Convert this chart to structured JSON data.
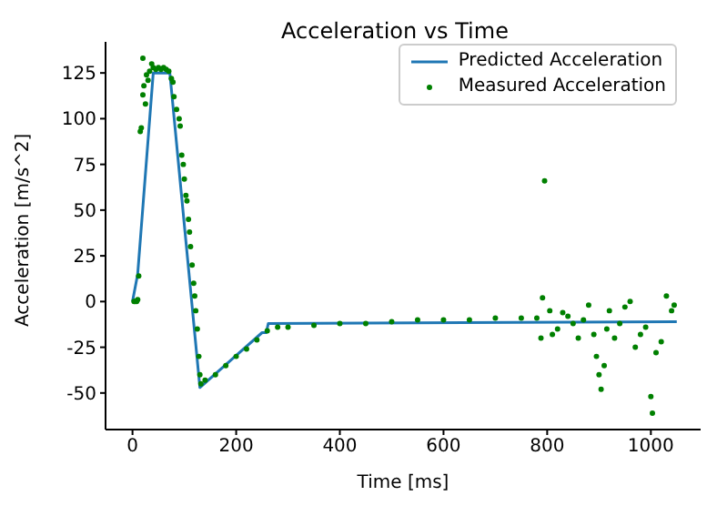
{
  "chart_data": {
    "type": "line",
    "title": "Acceleration vs Time",
    "xlabel": "Time [ms]",
    "ylabel": "Acceleration [m/s^2]",
    "xlim": [
      -52,
      1096
    ],
    "ylim": [
      -70,
      142
    ],
    "xticks": [
      0,
      200,
      400,
      600,
      800,
      1000
    ],
    "yticks": [
      -50,
      -25,
      0,
      25,
      50,
      75,
      100,
      125
    ],
    "grid": false,
    "legend": "top right",
    "series": [
      {
        "name": "Predicted Acceleration",
        "type": "line",
        "color": "#1f77b4",
        "marker": "none",
        "x": [
          0,
          10,
          40,
          72,
          130,
          250,
          258,
          262,
          1050
        ],
        "values": [
          0,
          15,
          125,
          125,
          -47,
          -17,
          -17,
          -12,
          -11
        ]
      },
      {
        "name": "Measured Acceleration",
        "type": "scatter",
        "color": "#008000",
        "marker": "circle",
        "x": [
          3,
          5,
          8,
          10,
          12,
          15,
          17,
          20,
          22,
          25,
          27,
          30,
          20,
          33,
          37,
          40,
          45,
          50,
          55,
          60,
          65,
          70,
          75,
          78,
          80,
          85,
          90,
          92,
          95,
          98,
          100,
          103,
          105,
          108,
          110,
          112,
          115,
          118,
          120,
          122,
          125,
          128,
          130,
          132,
          140,
          160,
          180,
          200,
          220,
          240,
          260,
          280,
          300,
          350,
          400,
          450,
          500,
          550,
          600,
          650,
          700,
          750,
          780,
          788,
          791,
          795,
          805,
          810,
          820,
          830,
          840,
          850,
          860,
          870,
          880,
          890,
          895,
          900,
          904,
          910,
          915,
          920,
          930,
          940,
          950,
          960,
          970,
          980,
          990,
          1000,
          1003,
          1010,
          1020,
          1030,
          1040,
          1045
        ],
        "values": [
          0,
          0,
          0,
          1,
          14,
          93,
          95,
          113,
          118,
          108,
          124,
          121,
          133,
          126,
          130,
          128,
          127,
          128,
          127,
          128,
          127,
          126,
          122,
          120,
          112,
          105,
          100,
          96,
          80,
          75,
          67,
          58,
          55,
          45,
          38,
          30,
          20,
          10,
          3,
          -5,
          -15,
          -30,
          -40,
          -45,
          -43,
          -40,
          -35,
          -30,
          -26,
          -21,
          -16,
          -14,
          -14,
          -13,
          -12,
          -12,
          -11,
          -10,
          -10,
          -10,
          -9,
          -9,
          -9,
          -20,
          2,
          66,
          -5,
          -18,
          -15,
          -6,
          -8,
          -12,
          -20,
          -10,
          -2,
          -18,
          -30,
          -40,
          -48,
          -35,
          -15,
          -5,
          -20,
          -12,
          -3,
          0,
          -25,
          -18,
          -14,
          -52,
          -61,
          -28,
          -22,
          3,
          -5,
          -2
        ]
      }
    ]
  }
}
